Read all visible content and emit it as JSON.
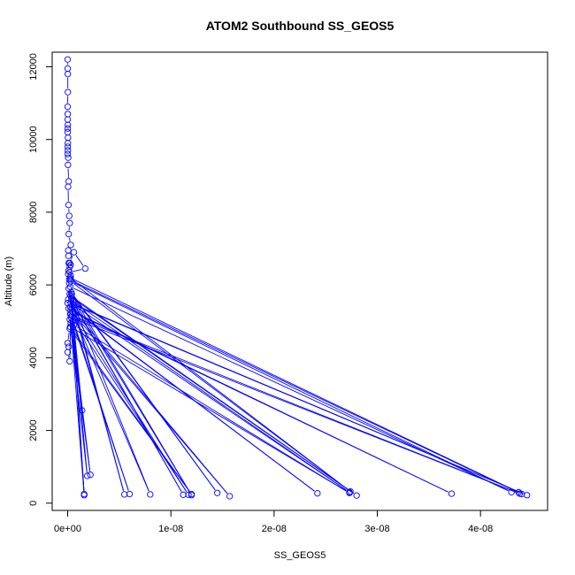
{
  "chart_data": {
    "type": "line",
    "title": "ATOM2 Southbound SS_GEOS5",
    "xlabel": "SS_GEOS5",
    "ylabel": "Altitude (m)",
    "xlim": [
      -1.5e-09,
      4.65e-08
    ],
    "ylim": [
      -200,
      12400
    ],
    "x_ticks": [
      0,
      1e-08,
      2e-08,
      3e-08,
      4e-08
    ],
    "x_tick_labels": [
      "0e+00",
      "1e-08",
      "2e-08",
      "3e-08",
      "4e-08"
    ],
    "y_ticks": [
      0,
      2000,
      4000,
      6000,
      8000,
      10000,
      12000
    ],
    "y_tick_labels": [
      "0",
      "2000",
      "4000",
      "6000",
      "8000",
      "10000",
      "12000"
    ],
    "grid": false,
    "markers": "open-circle",
    "colors": {
      "series": "#0000ff"
    },
    "series": [
      {
        "x": [
          0,
          0,
          1e-11,
          2e-11,
          0,
          1e-11,
          0,
          2e-11,
          1e-11,
          0,
          3e-11,
          2e-11,
          1e-11,
          2e-11,
          0,
          5e-11,
          3e-11,
          1e-10,
          4e-11,
          8e-11,
          1.5e-10,
          2e-10,
          1e-10,
          3e-10,
          5e-11,
          8e-11,
          2e-10,
          6e-10,
          1.7e-09,
          2e-10,
          3e-10,
          1.5e-10,
          4.4e-08,
          4.37e-08,
          2.2e-10,
          2.74e-08,
          3e-10,
          4.3e-08,
          2.5e-10,
          1.6e-09,
          3.5e-10,
          1.45e-08,
          4e-10,
          1.2e-08,
          3e-10,
          2.8e-08,
          4e-10,
          5.5e-09,
          3.5e-10,
          1.12e-08,
          5e-10,
          2.73e-08,
          3e-10,
          4.45e-08,
          6e-10,
          8e-09,
          2.5e-10,
          2.42e-08,
          4e-10,
          1.57e-08,
          3e-10,
          3.72e-08,
          5e-10,
          1.17e-08,
          2.5e-10,
          6e-09,
          4e-10,
          4.38e-08,
          3.5e-10,
          2.2e-09,
          2e-10,
          1.9e-09,
          5e-10,
          1.6e-09,
          3e-10,
          1.4e-09,
          6e-10,
          2.73e-08,
          2.5e-10,
          1.2e-08,
          2e-10,
          0,
          1e-10,
          0,
          2e-10,
          3e-10,
          1e-10,
          0,
          5e-11,
          2e-10,
          1e-10,
          1.5e-10,
          3e-10,
          5e-11,
          1e-10,
          2e-10,
          3e-10,
          1e-10
        ],
        "y": [
          12200,
          11950,
          11800,
          11300,
          10900,
          10700,
          10550,
          10400,
          10300,
          10200,
          10050,
          9900,
          9800,
          9700,
          9600,
          9500,
          9300,
          8850,
          8700,
          8200,
          7900,
          7700,
          7400,
          7100,
          6950,
          6800,
          6600,
          6900,
          6450,
          6350,
          6250,
          6150,
          250,
          300,
          6200,
          320,
          6100,
          300,
          5950,
          250,
          5800,
          280,
          5750,
          220,
          5700,
          210,
          5650,
          240,
          5600,
          230,
          5550,
          300,
          5500,
          220,
          5450,
          240,
          5400,
          270,
          5350,
          190,
          5300,
          260,
          5250,
          230,
          5200,
          250,
          5150,
          260,
          5100,
          780,
          5050,
          750,
          5000,
          220,
          4950,
          2550,
          4900,
          280,
          4850,
          250,
          4800,
          4400,
          4300,
          4150,
          3900,
          5200,
          5350,
          5500,
          5600,
          5750,
          5900,
          6050,
          6150,
          6300,
          6400,
          6500,
          6550,
          6600
        ]
      }
    ]
  }
}
